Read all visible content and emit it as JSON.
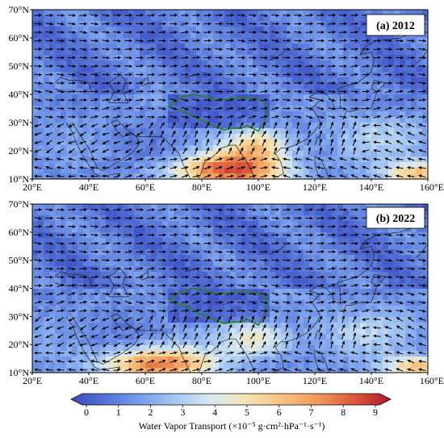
{
  "panels": [
    {
      "title": "(a) 2012",
      "lat_ticks": [
        "70°N",
        "60°N",
        "50°N",
        "40°N",
        "30°N",
        "20°N",
        "10°N"
      ],
      "lon_ticks": [
        "20°E",
        "40°E",
        "60°E",
        "80°E",
        "100°E",
        "120°E",
        "140°E",
        "160°E"
      ]
    },
    {
      "title": "(b) 2022",
      "lat_ticks": [
        "70°N",
        "60°N",
        "50°N",
        "40°N",
        "30°N",
        "20°N",
        "10°N"
      ],
      "lon_ticks": [
        "20°E",
        "40°E",
        "60°E",
        "80°E",
        "100°E",
        "120°E",
        "140°E",
        "160°E"
      ]
    }
  ],
  "map": {
    "lon_range": [
      20,
      160
    ],
    "lat_range": [
      10,
      70
    ],
    "plateau_outline_color": "#2e7d32",
    "coast_color": "#222222",
    "vector_color": "#000000"
  },
  "colorbar": {
    "ticks": [
      "0",
      "1",
      "2",
      "3",
      "4",
      "5",
      "6",
      "7",
      "8",
      "9"
    ],
    "range": [
      0,
      9
    ],
    "extend": "both",
    "colors": [
      "#3b4cc0",
      "#5573d6",
      "#7aa0ec",
      "#a7c8f2",
      "#d8e8f0",
      "#f4e3b3",
      "#f7c27e",
      "#f19a5b",
      "#dc5b3c",
      "#b2182b"
    ],
    "label": "Water Vapor Transport (×10⁻⁵ g·cm²·hPa⁻¹·s⁻¹)"
  }
}
